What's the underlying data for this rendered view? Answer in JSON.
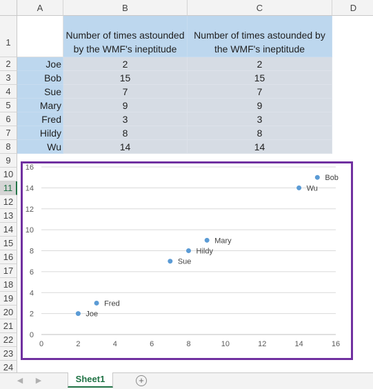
{
  "columns": [
    "A",
    "B",
    "C",
    "D"
  ],
  "rows": [
    "1",
    "2",
    "3",
    "4",
    "5",
    "6",
    "7",
    "8",
    "9",
    "10",
    "11",
    "12",
    "13",
    "14",
    "15",
    "16",
    "17",
    "18",
    "19",
    "20",
    "21",
    "22",
    "23",
    "24"
  ],
  "selected_row": "11",
  "table": {
    "header_b": "Number of times astounded by the WMF's ineptitude",
    "header_c": "Number of times astounded by the WMF's ineptitude",
    "records": [
      {
        "name": "Joe",
        "b": "2",
        "c": "2"
      },
      {
        "name": "Bob",
        "b": "15",
        "c": "15"
      },
      {
        "name": "Sue",
        "b": "7",
        "c": "7"
      },
      {
        "name": "Mary",
        "b": "9",
        "c": "9"
      },
      {
        "name": "Fred",
        "b": "3",
        "c": "3"
      },
      {
        "name": "Hildy",
        "b": "8",
        "c": "8"
      },
      {
        "name": "Wu",
        "b": "14",
        "c": "14"
      }
    ]
  },
  "chart_data": {
    "type": "scatter",
    "title": "",
    "xlabel": "",
    "ylabel": "",
    "xlim": [
      0,
      16
    ],
    "ylim": [
      0,
      16
    ],
    "xticks": [
      0,
      2,
      4,
      6,
      8,
      10,
      12,
      14,
      16
    ],
    "yticks": [
      0,
      2,
      4,
      6,
      8,
      10,
      12,
      14,
      16
    ],
    "grid": "horizontal",
    "marker_color": "#5b9bd5",
    "border_color": "#7030a0",
    "points": [
      {
        "label": "Joe",
        "x": 2,
        "y": 2
      },
      {
        "label": "Bob",
        "x": 15,
        "y": 15
      },
      {
        "label": "Sue",
        "x": 7,
        "y": 7
      },
      {
        "label": "Mary",
        "x": 9,
        "y": 9
      },
      {
        "label": "Fred",
        "x": 3,
        "y": 3
      },
      {
        "label": "Hildy",
        "x": 8,
        "y": 8
      },
      {
        "label": "Wu",
        "x": 14,
        "y": 14
      }
    ]
  },
  "tabs": {
    "prev_icon": "◀",
    "next_icon": "▶",
    "active": "Sheet1",
    "add_icon": "+"
  }
}
